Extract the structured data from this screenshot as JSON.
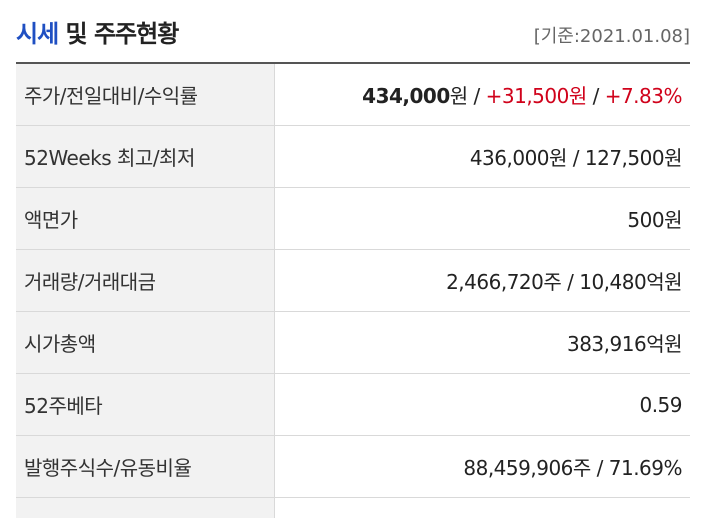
{
  "header": {
    "title_accent": "시세",
    "title_rest": " 및 주주현황",
    "basis": "[기준:2021.01.08]"
  },
  "rows": [
    {
      "label": "주가/전일대비/수익률",
      "price_value": "434,000",
      "price_unit": "원",
      "sep1": " / ",
      "change": "+31,500원",
      "sep2": " / ",
      "rate": "+7.83%"
    },
    {
      "label": "52Weeks 최고/최저",
      "value": "436,000원 / 127,500원"
    },
    {
      "label": "액면가",
      "value": "500원"
    },
    {
      "label": "거래량/거래대금",
      "value": "2,466,720주 / 10,480억원"
    },
    {
      "label": "시가총액",
      "value": "383,916억원"
    },
    {
      "label": "52주베타",
      "value": "0.59"
    },
    {
      "label": "발행주식수/유동비율",
      "value": "88,459,906주 / 71.69%"
    }
  ]
}
